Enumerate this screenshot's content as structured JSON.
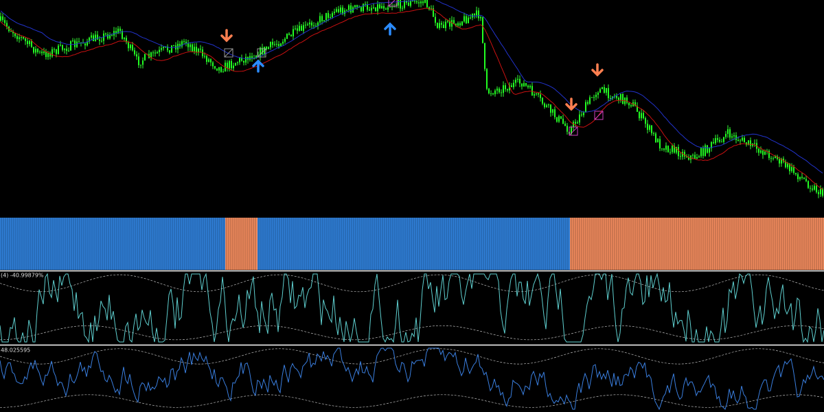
{
  "indicators": {
    "oscillator_label": "(4) -40.99879%",
    "lower_label": "48.025595"
  }
}
